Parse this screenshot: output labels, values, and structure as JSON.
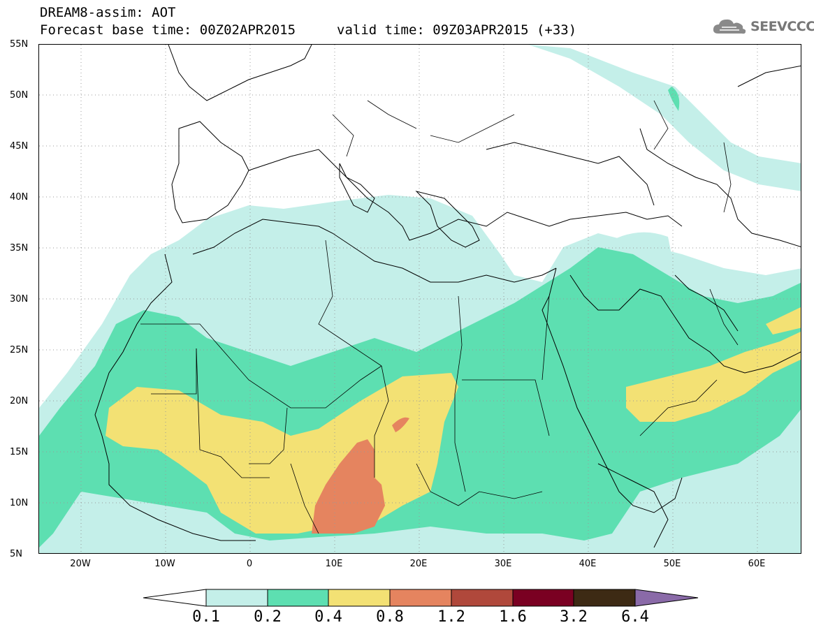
{
  "header": {
    "title_line1": "DREAM8-assim: AOT",
    "title_line2": "Forecast base time: 00Z02APR2015",
    "valid_time": "valid time: 09Z03APR2015 (+33)"
  },
  "logo": {
    "text": "SEEVCCC",
    "icon": "cloud-icon",
    "color": "#777777"
  },
  "map": {
    "variable": "AOT",
    "lat_labels": [
      "55N",
      "50N",
      "45N",
      "40N",
      "35N",
      "30N",
      "25N",
      "20N",
      "15N",
      "10N",
      "5N"
    ],
    "lon_labels": [
      "20W",
      "10W",
      "0",
      "10E",
      "20E",
      "30E",
      "40E",
      "50E",
      "60E"
    ],
    "lat_range": [
      5,
      55
    ],
    "lon_range": [
      -25,
      65
    ],
    "grid": "dotted"
  },
  "colorbar": {
    "levels": [
      "0.1",
      "0.2",
      "0.4",
      "0.8",
      "1.2",
      "1.6",
      "3.2",
      "6.4"
    ],
    "colors": [
      "#ffffff",
      "#c4efe9",
      "#5ddfb1",
      "#f3e174",
      "#e5845f",
      "#b0483b",
      "#7a0022",
      "#3d2a14",
      "#8a6aa8"
    ]
  }
}
